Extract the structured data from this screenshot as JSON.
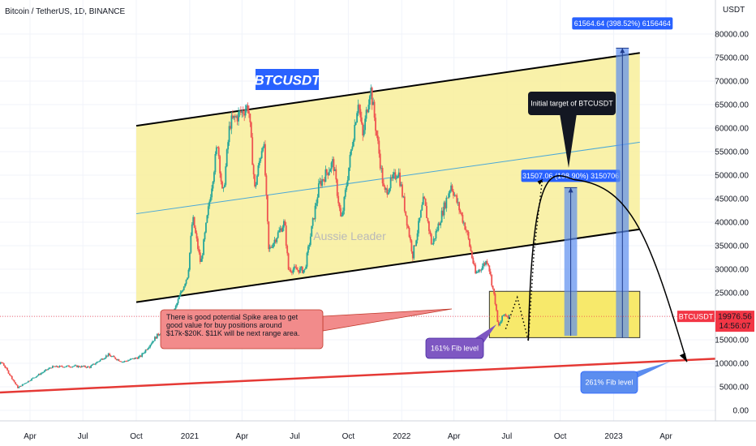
{
  "header": {
    "symbol": "Bitcoin / TetherUS, 1D, BINANCE"
  },
  "watermark": "Aussie Leader",
  "colors": {
    "up": "#26a69a",
    "down": "#ef5350",
    "channel_fill": "#f8ee9a",
    "channel_line": "#000000",
    "midline": "#4aa8d8",
    "support": "#e53935",
    "projection": "#5b8def",
    "fib_box": "#f7e96b",
    "price_tag": "#f23645",
    "title_bg": "#2962ff"
  },
  "chart_data": {
    "type": "candlestick",
    "y_axis": {
      "unit_label": "USDT",
      "ticks": [
        "0.00",
        "5000.00",
        "10000.00",
        "15000.00",
        "20000.00",
        "25000.00",
        "30000.00",
        "35000.00",
        "40000.00",
        "45000.00",
        "50000.00",
        "55000.00",
        "60000.00",
        "65000.00",
        "70000.00",
        "75000.00",
        "80000.00"
      ],
      "ylim": [
        -2500,
        84000
      ]
    },
    "x_axis": {
      "ticks": [
        "Apr",
        "Jul",
        "Oct",
        "2021",
        "Apr",
        "Jul",
        "Oct",
        "2022",
        "Apr",
        "Jul",
        "Oct",
        "2023",
        "Apr"
      ],
      "tick_dates": [
        "2020-04-01",
        "2020-07-01",
        "2020-10-01",
        "2021-01-01",
        "2021-04-01",
        "2021-07-01",
        "2021-10-01",
        "2022-01-01",
        "2022-04-01",
        "2022-07-01",
        "2022-10-01",
        "2023-01-01",
        "2023-04-01"
      ]
    },
    "price_path": [
      [
        "2020-01-01",
        7200
      ],
      [
        "2020-02-15",
        10200
      ],
      [
        "2020-03-13",
        4800
      ],
      [
        "2020-04-10",
        7000
      ],
      [
        "2020-05-10",
        9200
      ],
      [
        "2020-06-15",
        9400
      ],
      [
        "2020-07-15",
        9200
      ],
      [
        "2020-08-15",
        11800
      ],
      [
        "2020-09-10",
        10300
      ],
      [
        "2020-10-10",
        11400
      ],
      [
        "2020-11-05",
        15500
      ],
      [
        "2020-12-01",
        19000
      ],
      [
        "2020-12-31",
        29000
      ],
      [
        "2021-01-08",
        41000
      ],
      [
        "2021-01-22",
        31000
      ],
      [
        "2021-02-20",
        57000
      ],
      [
        "2021-03-01",
        45000
      ],
      [
        "2021-03-13",
        61000
      ],
      [
        "2021-04-14",
        64800
      ],
      [
        "2021-04-25",
        47000
      ],
      [
        "2021-05-10",
        58000
      ],
      [
        "2021-05-19",
        34000
      ],
      [
        "2021-06-15",
        40000
      ],
      [
        "2021-06-22",
        30000
      ],
      [
        "2021-07-20",
        29800
      ],
      [
        "2021-08-14",
        48000
      ],
      [
        "2021-09-07",
        52800
      ],
      [
        "2021-09-21",
        40000
      ],
      [
        "2021-10-20",
        66000
      ],
      [
        "2021-10-28",
        58000
      ],
      [
        "2021-11-10",
        69000
      ],
      [
        "2021-12-04",
        46000
      ],
      [
        "2021-12-28",
        51000
      ],
      [
        "2022-01-22",
        33000
      ],
      [
        "2022-02-10",
        45000
      ],
      [
        "2022-02-24",
        35000
      ],
      [
        "2022-03-29",
        48000
      ],
      [
        "2022-04-25",
        38000
      ],
      [
        "2022-05-10",
        29000
      ],
      [
        "2022-05-31",
        32000
      ],
      [
        "2022-06-13",
        23000
      ],
      [
        "2022-06-18",
        17600
      ],
      [
        "2022-06-28",
        20500
      ],
      [
        "2022-07-06",
        19976.56
      ]
    ],
    "last_price": {
      "ticker": "BTCUSDT",
      "value": "19976.56",
      "countdown": "14:56:07"
    },
    "title_tag": "BTCUSDT",
    "annotations": [
      {
        "id": "spike",
        "text": "There is good potential Spike area to get good value for buy positions around $17k-$20K. $11K will be next range area."
      },
      {
        "id": "fib161",
        "text": "161% Fib level"
      },
      {
        "id": "fib261",
        "text": "261% Fib level"
      },
      {
        "id": "initial",
        "text": "Initial target of BTCUSDT"
      }
    ],
    "projections": [
      {
        "label": "31507.06 (198.90%) 3150706",
        "from_price": 15840,
        "to_price": 47347,
        "date_from": "2022-10-08",
        "date_to": "2022-10-30"
      },
      {
        "label": "61564.64 (398.52%) 6156464",
        "from_price": 15448,
        "to_price": 77012,
        "date_from": "2023-01-05",
        "date_to": "2023-01-27"
      }
    ],
    "channel": {
      "upper": [
        [
          "2020-10-01",
          60500
        ],
        [
          "2023-02-15",
          76000
        ]
      ],
      "lower": [
        [
          "2020-10-01",
          23000
        ],
        [
          "2023-02-15",
          38500
        ]
      ],
      "mid": [
        [
          "2020-10-01",
          41800
        ],
        [
          "2023-02-15",
          57000
        ]
      ]
    },
    "support_line": [
      [
        "2019-12-25",
        3800
      ],
      [
        "2023-05-15",
        11200
      ]
    ],
    "fib_box": {
      "date_from": "2022-06-01",
      "date_to": "2023-02-15",
      "price_low": 15450,
      "price_high": 25300
    },
    "dotted_path": [
      [
        "2022-06-29",
        17300
      ],
      [
        "2022-07-19",
        24000
      ],
      [
        "2022-08-07",
        14800
      ],
      [
        "2022-08-17",
        34000
      ],
      [
        "2022-08-31",
        49000
      ]
    ],
    "arc": {
      "start": [
        "2022-08-07",
        14800
      ],
      "peak": [
        "2022-10-27",
        49000
      ],
      "end": [
        "2023-05-07",
        10300
      ]
    },
    "grid": true
  }
}
